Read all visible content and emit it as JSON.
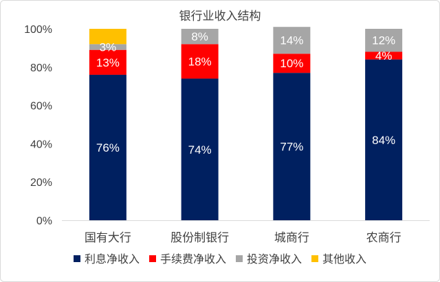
{
  "chart_data": {
    "type": "bar",
    "stacked": true,
    "title": "银行业收入结构",
    "categories": [
      "国有大行",
      "股份制银行",
      "城商行",
      "农商行"
    ],
    "ylim": [
      0,
      100
    ],
    "yticks": [
      "0%",
      "20%",
      "40%",
      "60%",
      "80%",
      "100%"
    ],
    "grid": false,
    "legend_position": "bottom",
    "series": [
      {
        "name": "利息净收入",
        "color": "#002060",
        "label_color": "#ffffff",
        "values": [
          76,
          74,
          77,
          84
        ],
        "labels": [
          "76%",
          "74%",
          "77%",
          "84%"
        ]
      },
      {
        "name": "手续费净收入",
        "color": "#ff0000",
        "label_color": "#ffffff",
        "values": [
          13,
          18,
          10,
          4
        ],
        "labels": [
          "13%",
          "18%",
          "10%",
          "4%"
        ]
      },
      {
        "name": "投资净收入",
        "color": "#a6a6a6",
        "label_color": "#ffffff",
        "values": [
          3,
          8,
          14,
          12
        ],
        "labels": [
          "3%",
          "8%",
          "14%",
          "12%"
        ]
      },
      {
        "name": "其他收入",
        "color": "#ffc000",
        "label_color": "#ffffff",
        "values": [
          8,
          0,
          0,
          0
        ],
        "labels": [
          "",
          "",
          "",
          ""
        ]
      }
    ]
  }
}
